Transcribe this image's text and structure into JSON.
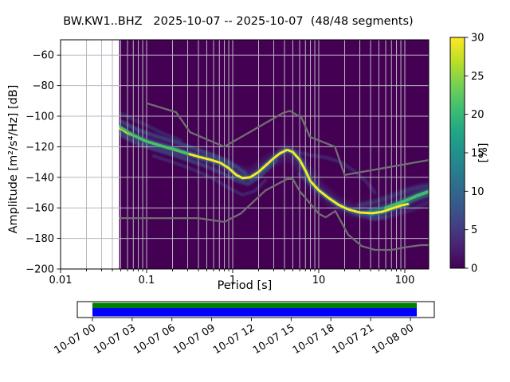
{
  "title": "BW.KW1..BHZ   2025-10-07 -- 2025-10-07  (48/48 segments)",
  "chart_data": {
    "type": "heatmap",
    "title": "BW.KW1..BHZ 2025-10-07 -- 2025-10-07 (48/48 segments)",
    "station": "BW.KW1..BHZ",
    "date_range": "2025-10-07 -- 2025-10-07",
    "segments": "48/48 segments",
    "xlabel": "Period [s]",
    "ylabel": "Amplitude [m²/s⁴/Hz] [dB]",
    "xscale": "log",
    "xlim": [
      0.01,
      190
    ],
    "ylim": [
      -200,
      -50
    ],
    "grid": true,
    "x_ticks": {
      "values": [
        0.01,
        0.1,
        1,
        10,
        100
      ],
      "labels": [
        "0.01",
        "0.1",
        "1",
        "10",
        "100"
      ]
    },
    "y_ticks": {
      "values": [
        -60,
        -80,
        -100,
        -120,
        -140,
        -160,
        -180,
        -200
      ],
      "labels": [
        "−60",
        "−80",
        "−100",
        "−120",
        "−140",
        "−160",
        "−180",
        "−200"
      ]
    },
    "data_period_range_s": [
      0.048,
      190
    ],
    "background_value_color": "#440154",
    "gridline_color": "#bab6c0",
    "colorbar": {
      "label": "[%]",
      "min": 0,
      "max": 30,
      "ticks": [
        0,
        5,
        10,
        15,
        20,
        25,
        30
      ],
      "colormap": "viridis",
      "stops": [
        "#440154",
        "#482475",
        "#414487",
        "#355f8d",
        "#2a788e",
        "#21918c",
        "#22a884",
        "#44bf70",
        "#7ad151",
        "#bddf26",
        "#fde725"
      ]
    },
    "psd_mode_line_db": [
      [
        0.048,
        -107.5
      ],
      [
        0.06,
        -111
      ],
      [
        0.08,
        -114
      ],
      [
        0.1,
        -116.5
      ],
      [
        0.14,
        -119
      ],
      [
        0.2,
        -121.5
      ],
      [
        0.28,
        -124
      ],
      [
        0.4,
        -126.5
      ],
      [
        0.55,
        -128.5
      ],
      [
        0.72,
        -130.5
      ],
      [
        0.9,
        -134
      ],
      [
        1.1,
        -138.5
      ],
      [
        1.3,
        -140.5
      ],
      [
        1.6,
        -140
      ],
      [
        2.0,
        -136.5
      ],
      [
        2.5,
        -131.5
      ],
      [
        3.0,
        -127.5
      ],
      [
        3.5,
        -124.5
      ],
      [
        4.3,
        -122
      ],
      [
        5.0,
        -123.5
      ],
      [
        6.0,
        -128.5
      ],
      [
        7.0,
        -135.5
      ],
      [
        8.0,
        -142.5
      ],
      [
        10.0,
        -148.5
      ],
      [
        13.0,
        -153.5
      ],
      [
        17.0,
        -158
      ],
      [
        22.0,
        -161
      ],
      [
        30.0,
        -163
      ],
      [
        42.0,
        -163.5
      ],
      [
        55.0,
        -162.5
      ],
      [
        70.0,
        -160.5
      ],
      [
        90.0,
        -158.5
      ],
      [
        108.0,
        -157.5
      ]
    ],
    "noise_models": {
      "color": "#6f6f6f",
      "nhnm": [
        [
          0.1,
          -91.5
        ],
        [
          0.22,
          -97.4
        ],
        [
          0.32,
          -110.5
        ],
        [
          0.8,
          -120.0
        ],
        [
          3.8,
          -98.0
        ],
        [
          4.6,
          -96.5
        ],
        [
          6.3,
          -101.0
        ],
        [
          7.9,
          -113.5
        ],
        [
          15.4,
          -120.0
        ],
        [
          20.0,
          -138.5
        ],
        [
          190.0,
          -128.7
        ]
      ],
      "nlnm": [
        [
          0.048,
          -166.7
        ],
        [
          0.4,
          -166.7
        ],
        [
          0.8,
          -169.2
        ],
        [
          1.24,
          -163.7
        ],
        [
          2.4,
          -148.6
        ],
        [
          4.3,
          -141.1
        ],
        [
          5.0,
          -141.1
        ],
        [
          6.0,
          -149.0
        ],
        [
          10.0,
          -163.8
        ],
        [
          12.0,
          -166.2
        ],
        [
          15.6,
          -162.1
        ],
        [
          21.9,
          -177.5
        ],
        [
          31.6,
          -185.0
        ],
        [
          45.0,
          -187.5
        ],
        [
          70.0,
          -187.5
        ],
        [
          101.0,
          -185.8
        ],
        [
          154.0,
          -184.4
        ],
        [
          190.0,
          -184.3
        ]
      ]
    },
    "distribution_strands": [
      {
        "name": "base-cloud",
        "color": "#46327e",
        "width": 16,
        "opacity": 0.45,
        "blur": 3,
        "points": [
          [
            0.049,
            -108
          ],
          [
            0.1,
            -116
          ],
          [
            0.25,
            -123
          ],
          [
            0.6,
            -129
          ],
          [
            1.2,
            -137
          ],
          [
            1.6,
            -139
          ],
          [
            2.5,
            -131
          ],
          [
            4.3,
            -123
          ],
          [
            6,
            -130
          ],
          [
            9,
            -145
          ],
          [
            15,
            -156
          ],
          [
            25,
            -162
          ],
          [
            45,
            -163
          ],
          [
            80,
            -158
          ],
          [
            130,
            -152
          ],
          [
            185,
            -150
          ]
        ]
      },
      {
        "name": "upper-fan-left",
        "color": "#3c4f8a",
        "width": 4.5,
        "opacity": 0.4,
        "blur": 1,
        "points": [
          [
            0.049,
            -98
          ],
          [
            0.07,
            -102
          ],
          [
            0.1,
            -106
          ],
          [
            0.15,
            -111
          ],
          [
            0.25,
            -116
          ]
        ]
      },
      {
        "name": "upper-strand",
        "color": "#355f8d",
        "width": 5,
        "opacity": 0.55,
        "blur": 1,
        "points": [
          [
            0.049,
            -103
          ],
          [
            0.08,
            -109
          ],
          [
            0.13,
            -113
          ],
          [
            0.22,
            -117
          ],
          [
            0.35,
            -121
          ],
          [
            0.55,
            -125
          ],
          [
            0.8,
            -128.5
          ],
          [
            1.1,
            -133
          ],
          [
            1.4,
            -137.5
          ]
        ]
      },
      {
        "name": "lower-strand",
        "color": "#355f8d",
        "width": 5,
        "opacity": 0.5,
        "blur": 1,
        "points": [
          [
            0.049,
            -112
          ],
          [
            0.08,
            -118
          ],
          [
            0.13,
            -122
          ],
          [
            0.2,
            -125
          ],
          [
            0.3,
            -128.5
          ],
          [
            0.5,
            -133
          ],
          [
            0.8,
            -138
          ],
          [
            1.1,
            -142
          ],
          [
            1.5,
            -144.5
          ],
          [
            2.0,
            -140
          ],
          [
            2.6,
            -134
          ],
          [
            3.2,
            -129
          ]
        ]
      },
      {
        "name": "lower-fan",
        "color": "#3f4b8b",
        "width": 4,
        "opacity": 0.45,
        "blur": 1,
        "points": [
          [
            0.12,
            -126
          ],
          [
            0.2,
            -130
          ],
          [
            0.35,
            -135
          ],
          [
            0.6,
            -141
          ],
          [
            0.9,
            -147
          ],
          [
            1.3,
            -151.5
          ],
          [
            1.8,
            -149
          ],
          [
            2.4,
            -142
          ]
        ]
      },
      {
        "name": "lens-right",
        "color": "#433d84",
        "width": 4.5,
        "opacity": 0.5,
        "blur": 1,
        "points": [
          [
            3.5,
            -122
          ],
          [
            5,
            -122.5
          ],
          [
            8,
            -125.5
          ],
          [
            12,
            -127
          ],
          [
            18,
            -130
          ],
          [
            26,
            -136
          ],
          [
            36,
            -143
          ],
          [
            45,
            -150
          ]
        ]
      },
      {
        "name": "lower-right",
        "color": "#3f4b8b",
        "width": 5,
        "opacity": 0.45,
        "blur": 1,
        "points": [
          [
            6,
            -138
          ],
          [
            9,
            -147
          ],
          [
            14,
            -155
          ],
          [
            20,
            -160.5
          ],
          [
            30,
            -165
          ],
          [
            45,
            -167
          ],
          [
            60,
            -166
          ]
        ]
      },
      {
        "name": "right-fan-upper",
        "color": "#355f8d",
        "width": 6,
        "opacity": 0.5,
        "blur": 2,
        "points": [
          [
            30,
            -158
          ],
          [
            45,
            -156
          ],
          [
            65,
            -153
          ],
          [
            90,
            -150
          ],
          [
            120,
            -147.5
          ],
          [
            160,
            -146
          ],
          [
            185,
            -145.5
          ]
        ]
      },
      {
        "name": "right-fan-lower",
        "color": "#3f4b8b",
        "width": 5,
        "opacity": 0.45,
        "blur": 2,
        "points": [
          [
            40,
            -167
          ],
          [
            60,
            -166
          ],
          [
            90,
            -163
          ],
          [
            120,
            -161
          ],
          [
            150,
            -158.5
          ],
          [
            185,
            -156.5
          ]
        ]
      },
      {
        "name": "teal-core",
        "color": "#25848e",
        "width": 7,
        "opacity": 0.6,
        "blur": 1,
        "follow_mode": true,
        "points": []
      },
      {
        "name": "teal-tail",
        "color": "#21918c",
        "width": 9,
        "opacity": 0.65,
        "blur": 1.5,
        "points": [
          [
            40,
            -163
          ],
          [
            60,
            -160.5
          ],
          [
            85,
            -157.5
          ],
          [
            110,
            -155
          ],
          [
            140,
            -152.5
          ],
          [
            185,
            -150
          ]
        ]
      },
      {
        "name": "green-tail",
        "color": "#4ac16d",
        "width": 4,
        "opacity": 0.9,
        "blur": 0,
        "dash": "5 2",
        "points": [
          [
            60,
            -160
          ],
          [
            85,
            -157
          ],
          [
            110,
            -154.5
          ],
          [
            140,
            -152
          ],
          [
            165,
            -150.5
          ],
          [
            185,
            -149.5
          ]
        ]
      },
      {
        "name": "mode-line",
        "color": "#fde725",
        "width": 3,
        "opacity": 1,
        "blur": 0,
        "dash": "4 1.8",
        "follow_mode": true,
        "points": []
      },
      {
        "name": "green-left",
        "color": "#40b869",
        "width": 3.5,
        "opacity": 0.9,
        "blur": 0,
        "points": [
          [
            0.049,
            -107
          ],
          [
            0.07,
            -112.5
          ],
          [
            0.1,
            -116.5
          ],
          [
            0.15,
            -119.5
          ],
          [
            0.22,
            -122
          ],
          [
            0.3,
            -124.5
          ]
        ]
      }
    ]
  },
  "timeline": {
    "tick_labels": [
      "10-07 00",
      "10-07 03",
      "10-07 06",
      "10-07 09",
      "10-07 12",
      "10-07 15",
      "10-07 18",
      "10-07 21",
      "10-08 00"
    ],
    "bar_colors": {
      "top": "#008000",
      "bottom": "#0000ff"
    }
  }
}
